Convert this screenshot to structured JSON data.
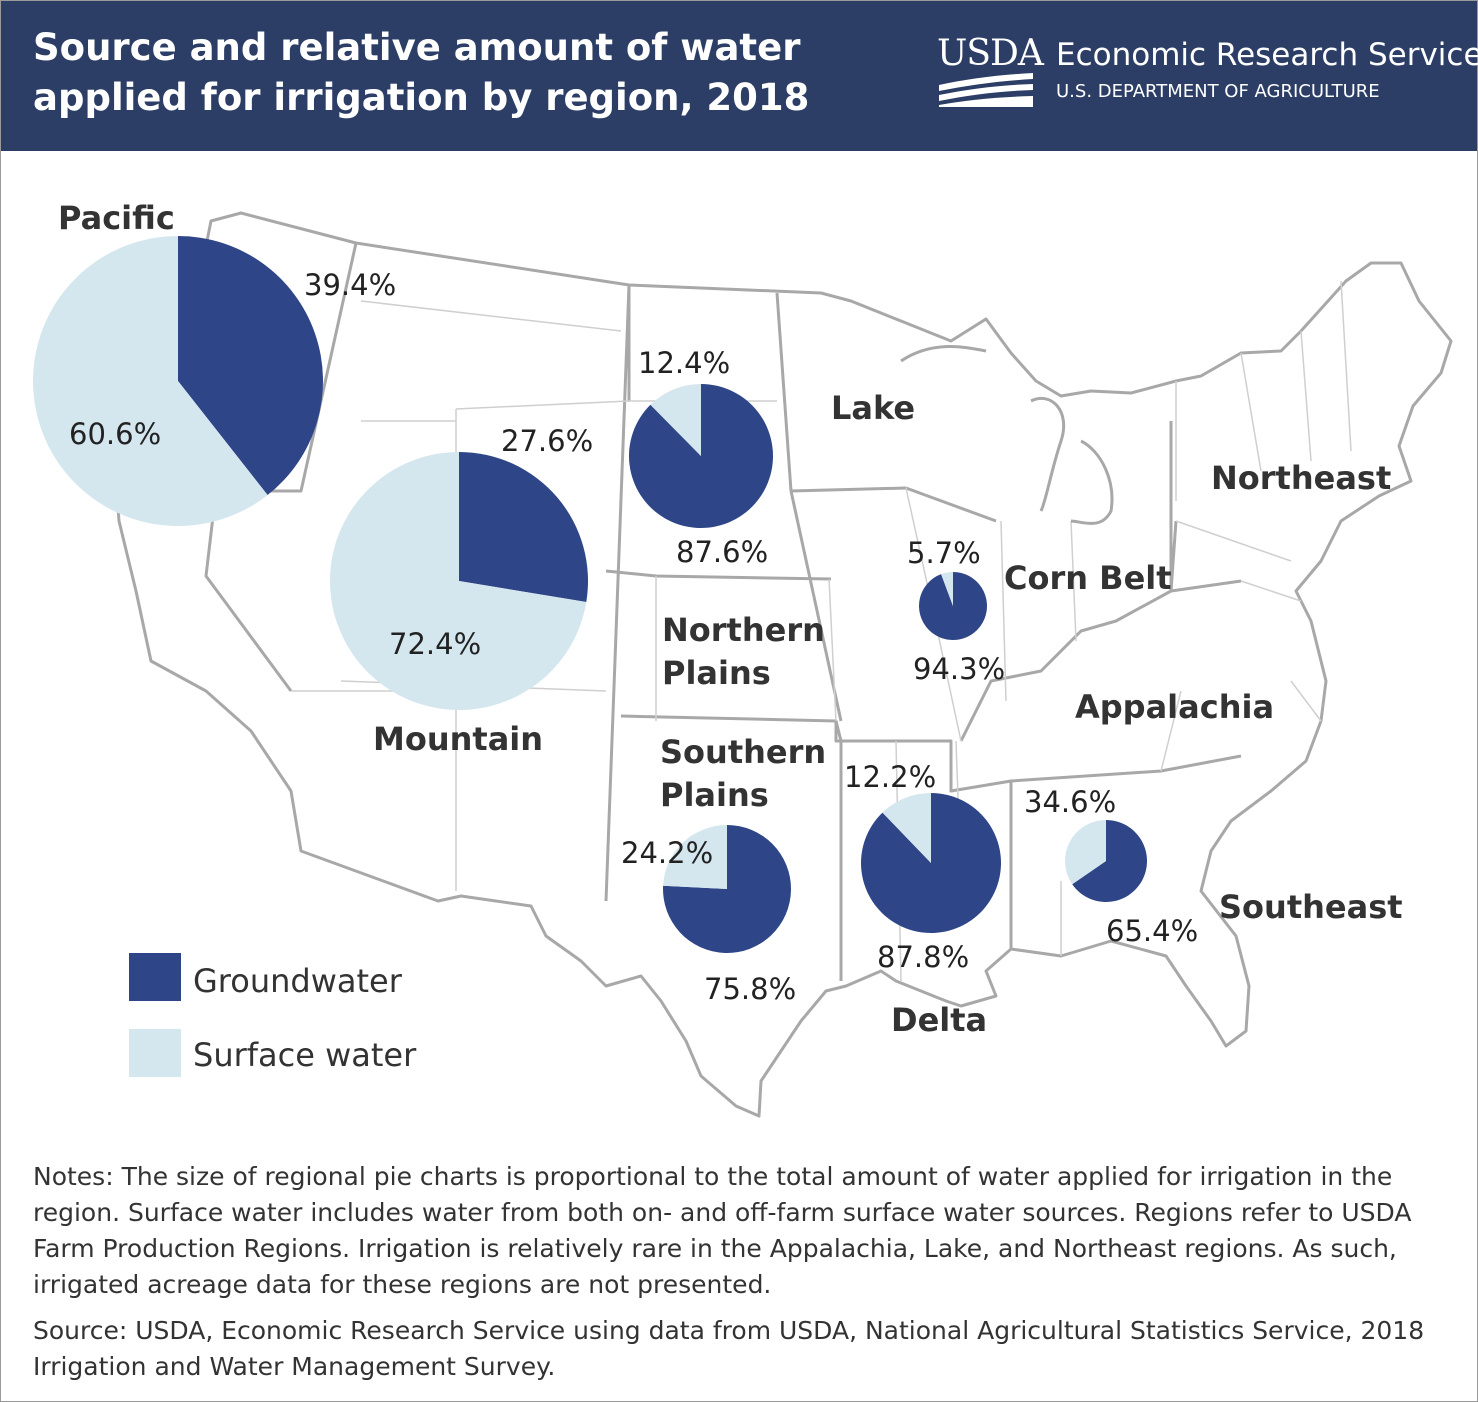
{
  "header": {
    "title": "Source and relative amount of water applied for irrigation by region, 2018",
    "logo_text": "USDA",
    "agency_name": "Economic Research Service",
    "department": "U.S. DEPARTMENT OF AGRICULTURE",
    "background_color": "#2c3e66"
  },
  "legend": {
    "groundwater": "Groundwater",
    "surface_water": "Surface water"
  },
  "colors": {
    "groundwater": "#2e4587",
    "surface_water": "#d4e6ee"
  },
  "chart_data": {
    "type": "pie",
    "series_names": [
      "Groundwater",
      "Surface water"
    ],
    "regions": [
      {
        "name": "Pacific",
        "groundwater": 39.4,
        "surface_water": 60.6,
        "groundwater_label": "39.4%",
        "surface_label": "60.6%"
      },
      {
        "name": "Mountain",
        "groundwater": 27.6,
        "surface_water": 72.4,
        "groundwater_label": "27.6%",
        "surface_label": "72.4%"
      },
      {
        "name": "Northern Plains",
        "groundwater": 87.6,
        "surface_water": 12.4,
        "groundwater_label": "87.6%",
        "surface_label": "12.4%"
      },
      {
        "name": "Corn Belt",
        "groundwater": 94.3,
        "surface_water": 5.7,
        "groundwater_label": "94.3%",
        "surface_label": "5.7%"
      },
      {
        "name": "Southern Plains",
        "groundwater": 75.8,
        "surface_water": 24.2,
        "groundwater_label": "75.8%",
        "surface_label": "24.2%"
      },
      {
        "name": "Delta",
        "groundwater": 87.8,
        "surface_water": 12.2,
        "groundwater_label": "87.8%",
        "surface_label": "12.2%"
      },
      {
        "name": "Southeast",
        "groundwater": 65.4,
        "surface_water": 34.6,
        "groundwater_label": "65.4%",
        "surface_label": "34.6%"
      }
    ],
    "regions_without_data": [
      "Lake",
      "Northeast",
      "Appalachia"
    ]
  },
  "region_labels": {
    "pacific": "Pacific",
    "mountain": "Mountain",
    "northern_plains_1": "Northern",
    "northern_plains_2": "Plains",
    "southern_plains_1": "Southern",
    "southern_plains_2": "Plains",
    "lake": "Lake",
    "corn_belt": "Corn Belt",
    "northeast": "Northeast",
    "appalachia": "Appalachia",
    "delta": "Delta",
    "southeast": "Southeast"
  },
  "notes": "Notes: The size of regional pie charts is proportional to the total amount of water applied for irrigation in the region. Surface water includes water from both on- and off-farm surface water sources. Regions refer to USDA Farm Production Regions. Irrigation is relatively rare in the Appalachia, Lake, and Northeast regions. As such, irrigated acreage data for these regions are not presented.",
  "source": "Source: USDA, Economic Research Service using data from USDA, National Agricultural Statistics Service, 2018 Irrigation and Water Management Survey."
}
